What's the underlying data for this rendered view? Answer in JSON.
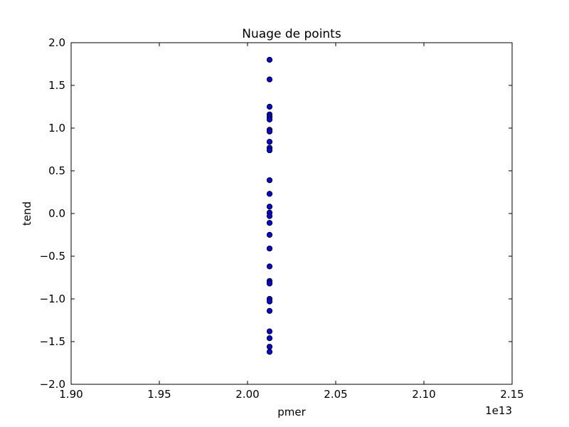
{
  "chart_data": {
    "type": "scatter",
    "title": "Nuage de points",
    "xlabel": "pmer",
    "ylabel": "tend",
    "x_offset_label": "1e13",
    "xlim": [
      1.9,
      2.15
    ],
    "ylim": [
      -2.0,
      2.0
    ],
    "x_ticks": [
      1.9,
      1.95,
      2.0,
      2.05,
      2.1,
      2.15
    ],
    "x_tick_labels": [
      "1.90",
      "1.95",
      "2.00",
      "2.05",
      "2.10",
      "2.15"
    ],
    "y_ticks": [
      -2.0,
      -1.5,
      -1.0,
      -0.5,
      0.0,
      0.5,
      1.0,
      1.5,
      2.0
    ],
    "y_tick_labels": [
      "−2.0",
      "−1.5",
      "−1.0",
      "−0.5",
      "0.0",
      "0.5",
      "1.0",
      "1.5",
      "2.0"
    ],
    "grid": false,
    "marker_color": "#0000ff",
    "marker_edge": "#000000",
    "points": [
      {
        "x": 2.0125,
        "y": 1.8
      },
      {
        "x": 2.0125,
        "y": 1.57
      },
      {
        "x": 2.0125,
        "y": 1.25
      },
      {
        "x": 2.0125,
        "y": 1.16
      },
      {
        "x": 2.0125,
        "y": 1.13
      },
      {
        "x": 2.0125,
        "y": 1.1
      },
      {
        "x": 2.0125,
        "y": 0.98
      },
      {
        "x": 2.0125,
        "y": 0.96
      },
      {
        "x": 2.0125,
        "y": 0.84
      },
      {
        "x": 2.0125,
        "y": 0.77
      },
      {
        "x": 2.0125,
        "y": 0.74
      },
      {
        "x": 2.0125,
        "y": 0.39
      },
      {
        "x": 2.0125,
        "y": 0.23
      },
      {
        "x": 2.0125,
        "y": 0.08
      },
      {
        "x": 2.0125,
        "y": 0.01
      },
      {
        "x": 2.0125,
        "y": -0.03
      },
      {
        "x": 2.0125,
        "y": -0.11
      },
      {
        "x": 2.0125,
        "y": -0.25
      },
      {
        "x": 2.0125,
        "y": -0.41
      },
      {
        "x": 2.0125,
        "y": -0.62
      },
      {
        "x": 2.0125,
        "y": -0.79
      },
      {
        "x": 2.0125,
        "y": -0.82
      },
      {
        "x": 2.0125,
        "y": -1.0
      },
      {
        "x": 2.0125,
        "y": -1.03
      },
      {
        "x": 2.0125,
        "y": -1.14
      },
      {
        "x": 2.0125,
        "y": -1.38
      },
      {
        "x": 2.0125,
        "y": -1.46
      },
      {
        "x": 2.0125,
        "y": -1.56
      },
      {
        "x": 2.0125,
        "y": -1.62
      }
    ]
  }
}
